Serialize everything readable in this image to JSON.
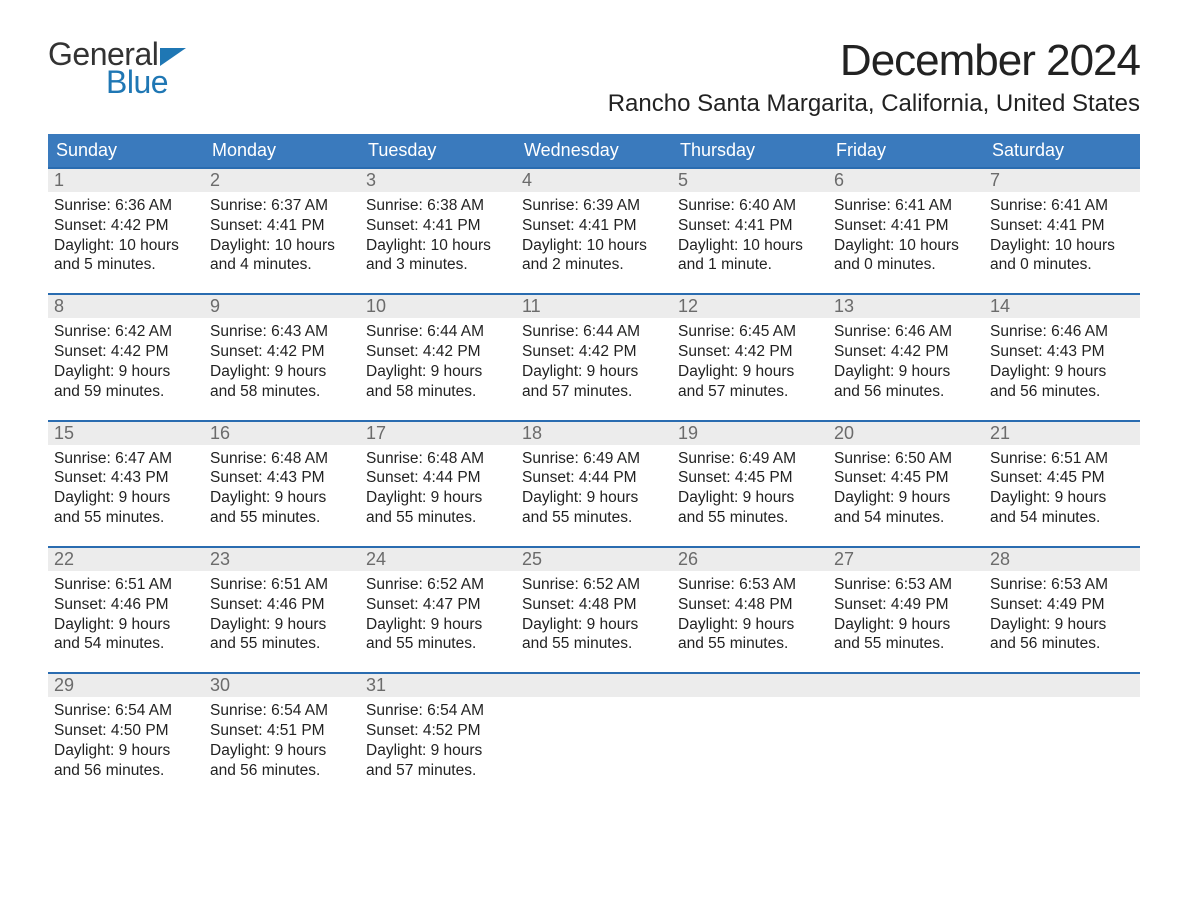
{
  "logo": {
    "line1": "General",
    "line2": "Blue"
  },
  "title": "December 2024",
  "location": "Rancho Santa Margarita, California, United States",
  "colors": {
    "header_blue": "#3a7abd",
    "accent_blue": "#2a6cb0",
    "row_number_bg": "#ececec",
    "text_color": "#222222",
    "logo_blue": "#1f77b4",
    "background": "#ffffff"
  },
  "typography": {
    "title_fontsize": 44,
    "location_fontsize": 24,
    "weekday_fontsize": 18,
    "daynum_fontsize": 18,
    "cell_fontsize": 15.5,
    "font_family": "Arial"
  },
  "weekdays": [
    "Sunday",
    "Monday",
    "Tuesday",
    "Wednesday",
    "Thursday",
    "Friday",
    "Saturday"
  ],
  "weeks": [
    [
      {
        "day": 1,
        "sunrise": "6:36 AM",
        "sunset": "4:42 PM",
        "daylight": "10 hours and 5 minutes."
      },
      {
        "day": 2,
        "sunrise": "6:37 AM",
        "sunset": "4:41 PM",
        "daylight": "10 hours and 4 minutes."
      },
      {
        "day": 3,
        "sunrise": "6:38 AM",
        "sunset": "4:41 PM",
        "daylight": "10 hours and 3 minutes."
      },
      {
        "day": 4,
        "sunrise": "6:39 AM",
        "sunset": "4:41 PM",
        "daylight": "10 hours and 2 minutes."
      },
      {
        "day": 5,
        "sunrise": "6:40 AM",
        "sunset": "4:41 PM",
        "daylight": "10 hours and 1 minute."
      },
      {
        "day": 6,
        "sunrise": "6:41 AM",
        "sunset": "4:41 PM",
        "daylight": "10 hours and 0 minutes."
      },
      {
        "day": 7,
        "sunrise": "6:41 AM",
        "sunset": "4:41 PM",
        "daylight": "10 hours and 0 minutes."
      }
    ],
    [
      {
        "day": 8,
        "sunrise": "6:42 AM",
        "sunset": "4:42 PM",
        "daylight": "9 hours and 59 minutes."
      },
      {
        "day": 9,
        "sunrise": "6:43 AM",
        "sunset": "4:42 PM",
        "daylight": "9 hours and 58 minutes."
      },
      {
        "day": 10,
        "sunrise": "6:44 AM",
        "sunset": "4:42 PM",
        "daylight": "9 hours and 58 minutes."
      },
      {
        "day": 11,
        "sunrise": "6:44 AM",
        "sunset": "4:42 PM",
        "daylight": "9 hours and 57 minutes."
      },
      {
        "day": 12,
        "sunrise": "6:45 AM",
        "sunset": "4:42 PM",
        "daylight": "9 hours and 57 minutes."
      },
      {
        "day": 13,
        "sunrise": "6:46 AM",
        "sunset": "4:42 PM",
        "daylight": "9 hours and 56 minutes."
      },
      {
        "day": 14,
        "sunrise": "6:46 AM",
        "sunset": "4:43 PM",
        "daylight": "9 hours and 56 minutes."
      }
    ],
    [
      {
        "day": 15,
        "sunrise": "6:47 AM",
        "sunset": "4:43 PM",
        "daylight": "9 hours and 55 minutes."
      },
      {
        "day": 16,
        "sunrise": "6:48 AM",
        "sunset": "4:43 PM",
        "daylight": "9 hours and 55 minutes."
      },
      {
        "day": 17,
        "sunrise": "6:48 AM",
        "sunset": "4:44 PM",
        "daylight": "9 hours and 55 minutes."
      },
      {
        "day": 18,
        "sunrise": "6:49 AM",
        "sunset": "4:44 PM",
        "daylight": "9 hours and 55 minutes."
      },
      {
        "day": 19,
        "sunrise": "6:49 AM",
        "sunset": "4:45 PM",
        "daylight": "9 hours and 55 minutes."
      },
      {
        "day": 20,
        "sunrise": "6:50 AM",
        "sunset": "4:45 PM",
        "daylight": "9 hours and 54 minutes."
      },
      {
        "day": 21,
        "sunrise": "6:51 AM",
        "sunset": "4:45 PM",
        "daylight": "9 hours and 54 minutes."
      }
    ],
    [
      {
        "day": 22,
        "sunrise": "6:51 AM",
        "sunset": "4:46 PM",
        "daylight": "9 hours and 54 minutes."
      },
      {
        "day": 23,
        "sunrise": "6:51 AM",
        "sunset": "4:46 PM",
        "daylight": "9 hours and 55 minutes."
      },
      {
        "day": 24,
        "sunrise": "6:52 AM",
        "sunset": "4:47 PM",
        "daylight": "9 hours and 55 minutes."
      },
      {
        "day": 25,
        "sunrise": "6:52 AM",
        "sunset": "4:48 PM",
        "daylight": "9 hours and 55 minutes."
      },
      {
        "day": 26,
        "sunrise": "6:53 AM",
        "sunset": "4:48 PM",
        "daylight": "9 hours and 55 minutes."
      },
      {
        "day": 27,
        "sunrise": "6:53 AM",
        "sunset": "4:49 PM",
        "daylight": "9 hours and 55 minutes."
      },
      {
        "day": 28,
        "sunrise": "6:53 AM",
        "sunset": "4:49 PM",
        "daylight": "9 hours and 56 minutes."
      }
    ],
    [
      {
        "day": 29,
        "sunrise": "6:54 AM",
        "sunset": "4:50 PM",
        "daylight": "9 hours and 56 minutes."
      },
      {
        "day": 30,
        "sunrise": "6:54 AM",
        "sunset": "4:51 PM",
        "daylight": "9 hours and 56 minutes."
      },
      {
        "day": 31,
        "sunrise": "6:54 AM",
        "sunset": "4:52 PM",
        "daylight": "9 hours and 57 minutes."
      },
      null,
      null,
      null,
      null
    ]
  ]
}
